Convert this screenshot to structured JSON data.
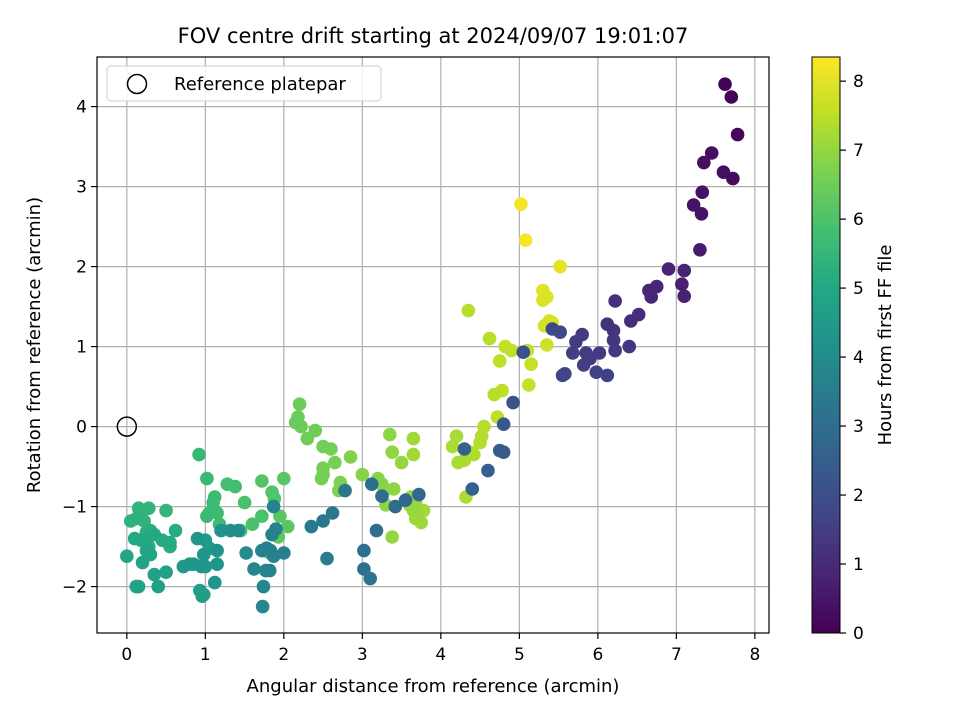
{
  "chart_data": {
    "type": "scatter",
    "title": "FOV centre drift starting at 2024/09/07 19:01:07",
    "xlabel": "Angular distance from reference (arcmin)",
    "ylabel": "Rotation from reference (arcmin)",
    "xlim": [
      -0.38,
      8.18
    ],
    "ylim": [
      -2.58,
      4.62
    ],
    "x_ticks": [
      0,
      1,
      2,
      3,
      4,
      5,
      6,
      7,
      8
    ],
    "y_ticks": [
      -2,
      -1,
      0,
      1,
      2,
      3,
      4
    ],
    "x_tick_labels": [
      "0",
      "1",
      "2",
      "3",
      "4",
      "5",
      "6",
      "7",
      "8"
    ],
    "y_tick_labels": [
      "−2",
      "−1",
      "0",
      "1",
      "2",
      "3",
      "4"
    ],
    "grid": true,
    "colormap": "viridis",
    "colorbar": {
      "label": "Hours from first FF file",
      "range": [
        0,
        8.35
      ],
      "ticks": [
        0,
        1,
        2,
        3,
        4,
        5,
        6,
        7,
        8
      ],
      "tick_labels": [
        "0",
        "1",
        "2",
        "3",
        "4",
        "5",
        "6",
        "7",
        "8"
      ]
    },
    "legend": {
      "placement": "top-left",
      "entries": [
        {
          "label": "Reference platepar"
        }
      ]
    },
    "reference_point": {
      "x": 0,
      "y": 0
    },
    "points": [
      [
        7.62,
        4.28,
        0.1
      ],
      [
        7.7,
        4.12,
        0.1
      ],
      [
        7.78,
        3.65,
        0.15
      ],
      [
        7.45,
        3.42,
        0.3
      ],
      [
        7.35,
        3.3,
        0.35
      ],
      [
        7.6,
        3.18,
        0.3
      ],
      [
        7.72,
        3.1,
        0.25
      ],
      [
        7.33,
        2.93,
        0.4
      ],
      [
        7.22,
        2.77,
        0.45
      ],
      [
        7.32,
        2.66,
        0.4
      ],
      [
        7.3,
        2.21,
        0.65
      ],
      [
        6.9,
        1.97,
        0.8
      ],
      [
        7.1,
        1.95,
        0.8
      ],
      [
        7.07,
        1.78,
        0.75
      ],
      [
        7.1,
        1.63,
        0.8
      ],
      [
        6.75,
        1.75,
        0.9
      ],
      [
        6.65,
        1.7,
        0.85
      ],
      [
        6.68,
        1.62,
        0.95
      ],
      [
        6.52,
        1.4,
        1.05
      ],
      [
        6.42,
        1.32,
        1.1
      ],
      [
        6.22,
        1.57,
        1.15
      ],
      [
        6.12,
        1.28,
        1.2
      ],
      [
        6.2,
        1.2,
        1.25
      ],
      [
        6.2,
        1.08,
        1.3
      ],
      [
        6.4,
        1.0,
        1.3
      ],
      [
        6.22,
        0.95,
        1.35
      ],
      [
        6.02,
        0.92,
        1.4
      ],
      [
        5.85,
        0.92,
        1.45
      ],
      [
        5.9,
        0.85,
        1.5
      ],
      [
        5.8,
        1.15,
        1.45
      ],
      [
        5.72,
        1.06,
        1.5
      ],
      [
        5.68,
        0.92,
        1.55
      ],
      [
        5.82,
        0.77,
        1.55
      ],
      [
        5.98,
        0.68,
        1.6
      ],
      [
        6.12,
        0.64,
        1.6
      ],
      [
        5.58,
        0.66,
        1.7
      ],
      [
        5.55,
        0.64,
        1.7
      ],
      [
        5.42,
        1.22,
        1.75
      ],
      [
        5.52,
        1.18,
        1.8
      ],
      [
        5.05,
        0.93,
        2.0
      ],
      [
        4.92,
        0.3,
        2.15
      ],
      [
        4.8,
        0.03,
        2.3
      ],
      [
        4.8,
        -0.32,
        2.4
      ],
      [
        4.75,
        -0.3,
        2.4
      ],
      [
        4.6,
        -0.55,
        2.5
      ],
      [
        4.4,
        -0.78,
        2.55
      ],
      [
        4.3,
        -0.28,
        2.6
      ],
      [
        3.72,
        -0.85,
        2.8
      ],
      [
        3.55,
        -0.92,
        2.85
      ],
      [
        3.42,
        -1.0,
        2.9
      ],
      [
        3.25,
        -0.87,
        2.95
      ],
      [
        3.12,
        -0.72,
        3.0
      ],
      [
        3.18,
        -1.3,
        3.05
      ],
      [
        3.02,
        -1.55,
        3.1
      ],
      [
        3.02,
        -1.78,
        3.1
      ],
      [
        3.1,
        -1.9,
        3.15
      ],
      [
        2.62,
        -1.08,
        3.3
      ],
      [
        2.5,
        -1.18,
        3.35
      ],
      [
        2.35,
        -1.25,
        3.4
      ],
      [
        2.55,
        -1.65,
        3.45
      ],
      [
        2.78,
        -0.8,
        3.3
      ],
      [
        2.0,
        -1.58,
        3.55
      ],
      [
        1.85,
        -1.35,
        3.6
      ],
      [
        1.9,
        -1.28,
        3.6
      ],
      [
        1.83,
        -1.55,
        3.6
      ],
      [
        1.78,
        -1.52,
        3.65
      ],
      [
        1.72,
        -1.55,
        3.7
      ],
      [
        1.87,
        -1.62,
        3.7
      ],
      [
        1.82,
        -1.8,
        3.7
      ],
      [
        1.77,
        -1.8,
        3.75
      ],
      [
        1.74,
        -2.0,
        3.8
      ],
      [
        1.73,
        -2.25,
        3.8
      ],
      [
        1.87,
        -1.0,
        3.7
      ],
      [
        1.62,
        -1.78,
        3.8
      ],
      [
        1.52,
        -1.58,
        4.0
      ],
      [
        1.42,
        -1.3,
        4.0
      ],
      [
        1.32,
        -1.3,
        4.1
      ],
      [
        1.2,
        -1.3,
        4.2
      ],
      [
        1.15,
        -1.55,
        4.25
      ],
      [
        1.15,
        -1.72,
        4.3
      ],
      [
        1.12,
        -1.95,
        4.3
      ],
      [
        1.0,
        -1.75,
        4.35
      ],
      [
        0.98,
        -1.6,
        4.35
      ],
      [
        0.9,
        -1.4,
        4.35
      ],
      [
        0.85,
        -1.72,
        4.4
      ],
      [
        0.8,
        -1.72,
        4.4
      ],
      [
        0.72,
        -1.75,
        4.45
      ],
      [
        1.0,
        -1.42,
        4.5
      ],
      [
        1.05,
        -1.52,
        4.5
      ],
      [
        0.95,
        -1.75,
        4.5
      ],
      [
        0.93,
        -2.05,
        4.6
      ],
      [
        0.98,
        -2.1,
        4.6
      ],
      [
        0.96,
        -2.12,
        4.6
      ],
      [
        0.4,
        -2.0,
        4.7
      ],
      [
        0.35,
        -1.85,
        4.75
      ],
      [
        0.5,
        -1.82,
        4.75
      ],
      [
        0.12,
        -2.0,
        4.8
      ],
      [
        0.15,
        -2.0,
        4.8
      ],
      [
        0.2,
        -1.7,
        4.85
      ],
      [
        0.25,
        -1.55,
        4.9
      ],
      [
        0.3,
        -1.6,
        4.9
      ],
      [
        0.0,
        -1.62,
        4.95
      ],
      [
        0.1,
        -1.4,
        5.0
      ],
      [
        0.18,
        -1.42,
        5.0
      ],
      [
        0.28,
        -1.38,
        5.05
      ],
      [
        0.35,
        -1.35,
        5.05
      ],
      [
        0.45,
        -1.42,
        5.1
      ],
      [
        0.55,
        -1.45,
        5.1
      ],
      [
        0.62,
        -1.3,
        5.15
      ],
      [
        0.55,
        -1.5,
        5.2
      ],
      [
        0.28,
        -1.5,
        5.2
      ],
      [
        0.25,
        -1.32,
        5.25
      ],
      [
        0.3,
        -1.3,
        5.3
      ],
      [
        0.05,
        -1.18,
        5.35
      ],
      [
        0.12,
        -1.15,
        5.35
      ],
      [
        0.22,
        -1.18,
        5.4
      ],
      [
        0.2,
        -1.05,
        5.4
      ],
      [
        0.28,
        -1.02,
        5.45
      ],
      [
        0.15,
        -1.02,
        5.45
      ],
      [
        0.5,
        -1.05,
        5.5
      ],
      [
        0.92,
        -0.35,
        5.55
      ],
      [
        1.02,
        -0.65,
        5.6
      ],
      [
        1.02,
        -1.12,
        5.65
      ],
      [
        1.05,
        -1.08,
        5.65
      ],
      [
        1.1,
        -0.95,
        5.7
      ],
      [
        1.12,
        -0.88,
        5.7
      ],
      [
        1.15,
        -1.08,
        5.7
      ],
      [
        1.18,
        -1.22,
        5.75
      ],
      [
        1.28,
        -0.72,
        5.8
      ],
      [
        1.38,
        -0.75,
        5.8
      ],
      [
        1.45,
        -1.3,
        5.85
      ],
      [
        1.5,
        -0.95,
        5.9
      ],
      [
        1.6,
        -1.22,
        5.95
      ],
      [
        1.72,
        -1.12,
        5.95
      ],
      [
        1.75,
        -1.55,
        6.0
      ],
      [
        1.85,
        -0.82,
        6.05
      ],
      [
        1.88,
        -0.9,
        6.05
      ],
      [
        1.82,
        -1.58,
        6.05
      ],
      [
        1.72,
        -0.68,
        6.1
      ],
      [
        2.0,
        -0.65,
        6.15
      ],
      [
        1.95,
        -1.12,
        6.2
      ],
      [
        2.05,
        -1.25,
        6.2
      ],
      [
        1.93,
        -1.38,
        6.2
      ],
      [
        2.15,
        0.05,
        6.4
      ],
      [
        2.18,
        0.12,
        6.4
      ],
      [
        2.22,
        0.0,
        6.45
      ],
      [
        2.2,
        0.28,
        6.45
      ],
      [
        2.3,
        -0.15,
        6.5
      ],
      [
        2.4,
        -0.05,
        6.5
      ],
      [
        2.5,
        -0.25,
        6.55
      ],
      [
        2.6,
        -0.28,
        6.6
      ],
      [
        2.5,
        -0.52,
        6.6
      ],
      [
        2.5,
        -0.6,
        6.6
      ],
      [
        2.48,
        -0.65,
        6.6
      ],
      [
        2.65,
        -0.45,
        6.65
      ],
      [
        2.72,
        -0.7,
        6.7
      ],
      [
        2.7,
        -0.8,
        6.7
      ],
      [
        2.85,
        -0.38,
        6.75
      ],
      [
        3.0,
        -0.6,
        6.8
      ],
      [
        3.2,
        -0.65,
        6.85
      ],
      [
        3.25,
        -0.72,
        6.85
      ],
      [
        3.28,
        -0.8,
        6.9
      ],
      [
        3.3,
        -0.98,
        6.9
      ],
      [
        3.35,
        -0.1,
        6.9
      ],
      [
        3.38,
        -0.32,
        6.95
      ],
      [
        3.4,
        -0.78,
        6.95
      ],
      [
        3.38,
        -1.38,
        7.0
      ],
      [
        3.5,
        -0.45,
        7.0
      ],
      [
        3.62,
        -0.88,
        7.0
      ],
      [
        3.6,
        -0.98,
        7.05
      ],
      [
        3.65,
        -1.05,
        7.05
      ],
      [
        3.68,
        -0.95,
        7.05
      ],
      [
        3.7,
        -1.1,
        7.1
      ],
      [
        3.68,
        -1.15,
        7.1
      ],
      [
        3.75,
        -1.2,
        7.1
      ],
      [
        3.78,
        -1.05,
        7.15
      ],
      [
        3.65,
        -0.15,
        7.15
      ],
      [
        3.65,
        -0.35,
        7.15
      ],
      [
        4.15,
        -0.25,
        7.25
      ],
      [
        4.2,
        -0.12,
        7.25
      ],
      [
        4.22,
        -0.45,
        7.25
      ],
      [
        4.3,
        -0.42,
        7.3
      ],
      [
        4.32,
        -0.88,
        7.3
      ],
      [
        4.38,
        -0.32,
        7.35
      ],
      [
        4.42,
        -0.35,
        7.35
      ],
      [
        4.35,
        1.45,
        7.4
      ],
      [
        4.5,
        -0.2,
        7.4
      ],
      [
        4.52,
        -0.12,
        7.4
      ],
      [
        4.55,
        0.0,
        7.4
      ],
      [
        4.62,
        1.1,
        7.45
      ],
      [
        4.68,
        0.4,
        7.45
      ],
      [
        4.72,
        0.12,
        7.5
      ],
      [
        4.78,
        0.45,
        7.5
      ],
      [
        4.75,
        0.82,
        7.5
      ],
      [
        4.82,
        1.0,
        7.55
      ],
      [
        4.9,
        0.95,
        7.55
      ],
      [
        5.1,
        0.95,
        7.6
      ],
      [
        5.12,
        0.52,
        7.65
      ],
      [
        5.15,
        0.78,
        7.65
      ],
      [
        5.35,
        1.02,
        7.75
      ],
      [
        5.32,
        1.26,
        7.8
      ],
      [
        5.38,
        1.32,
        7.85
      ],
      [
        5.42,
        1.3,
        7.9
      ],
      [
        5.35,
        1.62,
        7.9
      ],
      [
        5.3,
        1.7,
        7.95
      ],
      [
        5.3,
        1.58,
        7.95
      ],
      [
        5.52,
        2.0,
        8.0
      ],
      [
        5.02,
        2.78,
        8.25
      ],
      [
        5.08,
        2.33,
        8.2
      ]
    ]
  }
}
